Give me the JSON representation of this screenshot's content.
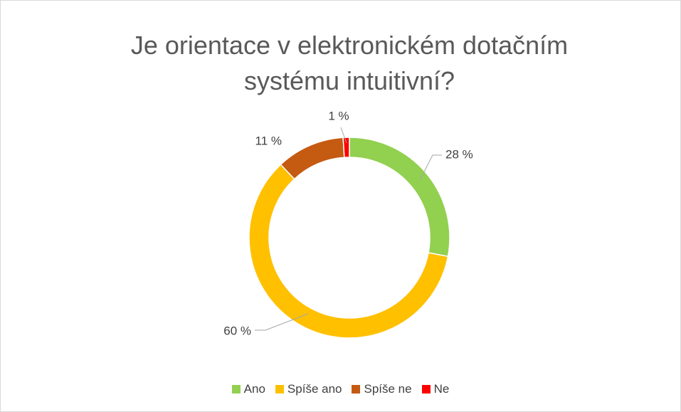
{
  "chart_data": {
    "type": "donut",
    "title": "Je orientace v elektronickém dotačním systému intuitivní?",
    "categories": [
      "Ano",
      "Spíše ano",
      "Spíše ne",
      "Ne"
    ],
    "values": [
      28,
      60,
      11,
      1
    ],
    "value_labels": [
      "28 %",
      "60 %",
      "11 %",
      "1 %"
    ],
    "colors": [
      "#92d050",
      "#ffc000",
      "#c55a11",
      "#ff0000"
    ],
    "legend": "bottom"
  }
}
